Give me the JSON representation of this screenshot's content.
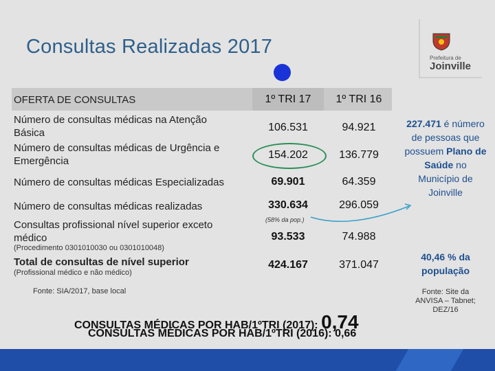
{
  "title": "Consultas Realizadas 2017",
  "logo": {
    "sub": "Prefeitura de",
    "city": "Joinville"
  },
  "table": {
    "headers": {
      "col0": "OFERTA DE CONSULTAS",
      "col1": "1º TRI 17",
      "col2": "1º TRI 16"
    },
    "rows": [
      {
        "label": "Número de consultas médicas na Atenção Básica",
        "v2017": "106.531",
        "v2016": "94.921"
      },
      {
        "label": "Número de consultas médicas de Urgência e Emergência",
        "v2017": "154.202",
        "v2016": "136.779"
      },
      {
        "label": "Número de consultas médicas Especializadas",
        "v2017": "69.901",
        "v2016": "64.359"
      },
      {
        "label": "Número de consultas médicas realizadas",
        "v2017": "330.634",
        "v2016": "296.059"
      },
      {
        "label": "Consultas profissional nível superior exceto médico",
        "v2017": "93.533",
        "v2016": "74.988"
      },
      {
        "label": "Total de consultas de nível superior",
        "v2017": "424.167",
        "v2016": "371.047"
      }
    ],
    "note_pop": "(58% da pop.)",
    "proc_note": "(Procedimento 0301010030 ou 0301010048)",
    "prof_note": "(Profissional médico e não médico)"
  },
  "source": "Fonte: SIA/2017, base local",
  "side": {
    "plan_value": "227.471",
    "plan_text_a": "é número de pessoas que possuem",
    "plan_text_b": "Plano de Saúde",
    "plan_text_c": "no Município de Joinville",
    "pop_value": "40,46 % da população",
    "source": "Fonte: Site da ANVISA – Tabnet; DEZ/16"
  },
  "summary": {
    "line2017_label": "CONSULTAS MÉDICAS POR HAB/1ºTRI (2017):",
    "line2017_value": "0,74",
    "line2016_label": "CONSULTAS MÉDICAS POR HAB/1ºTRI (2016):",
    "line2016_value": "0,66"
  }
}
